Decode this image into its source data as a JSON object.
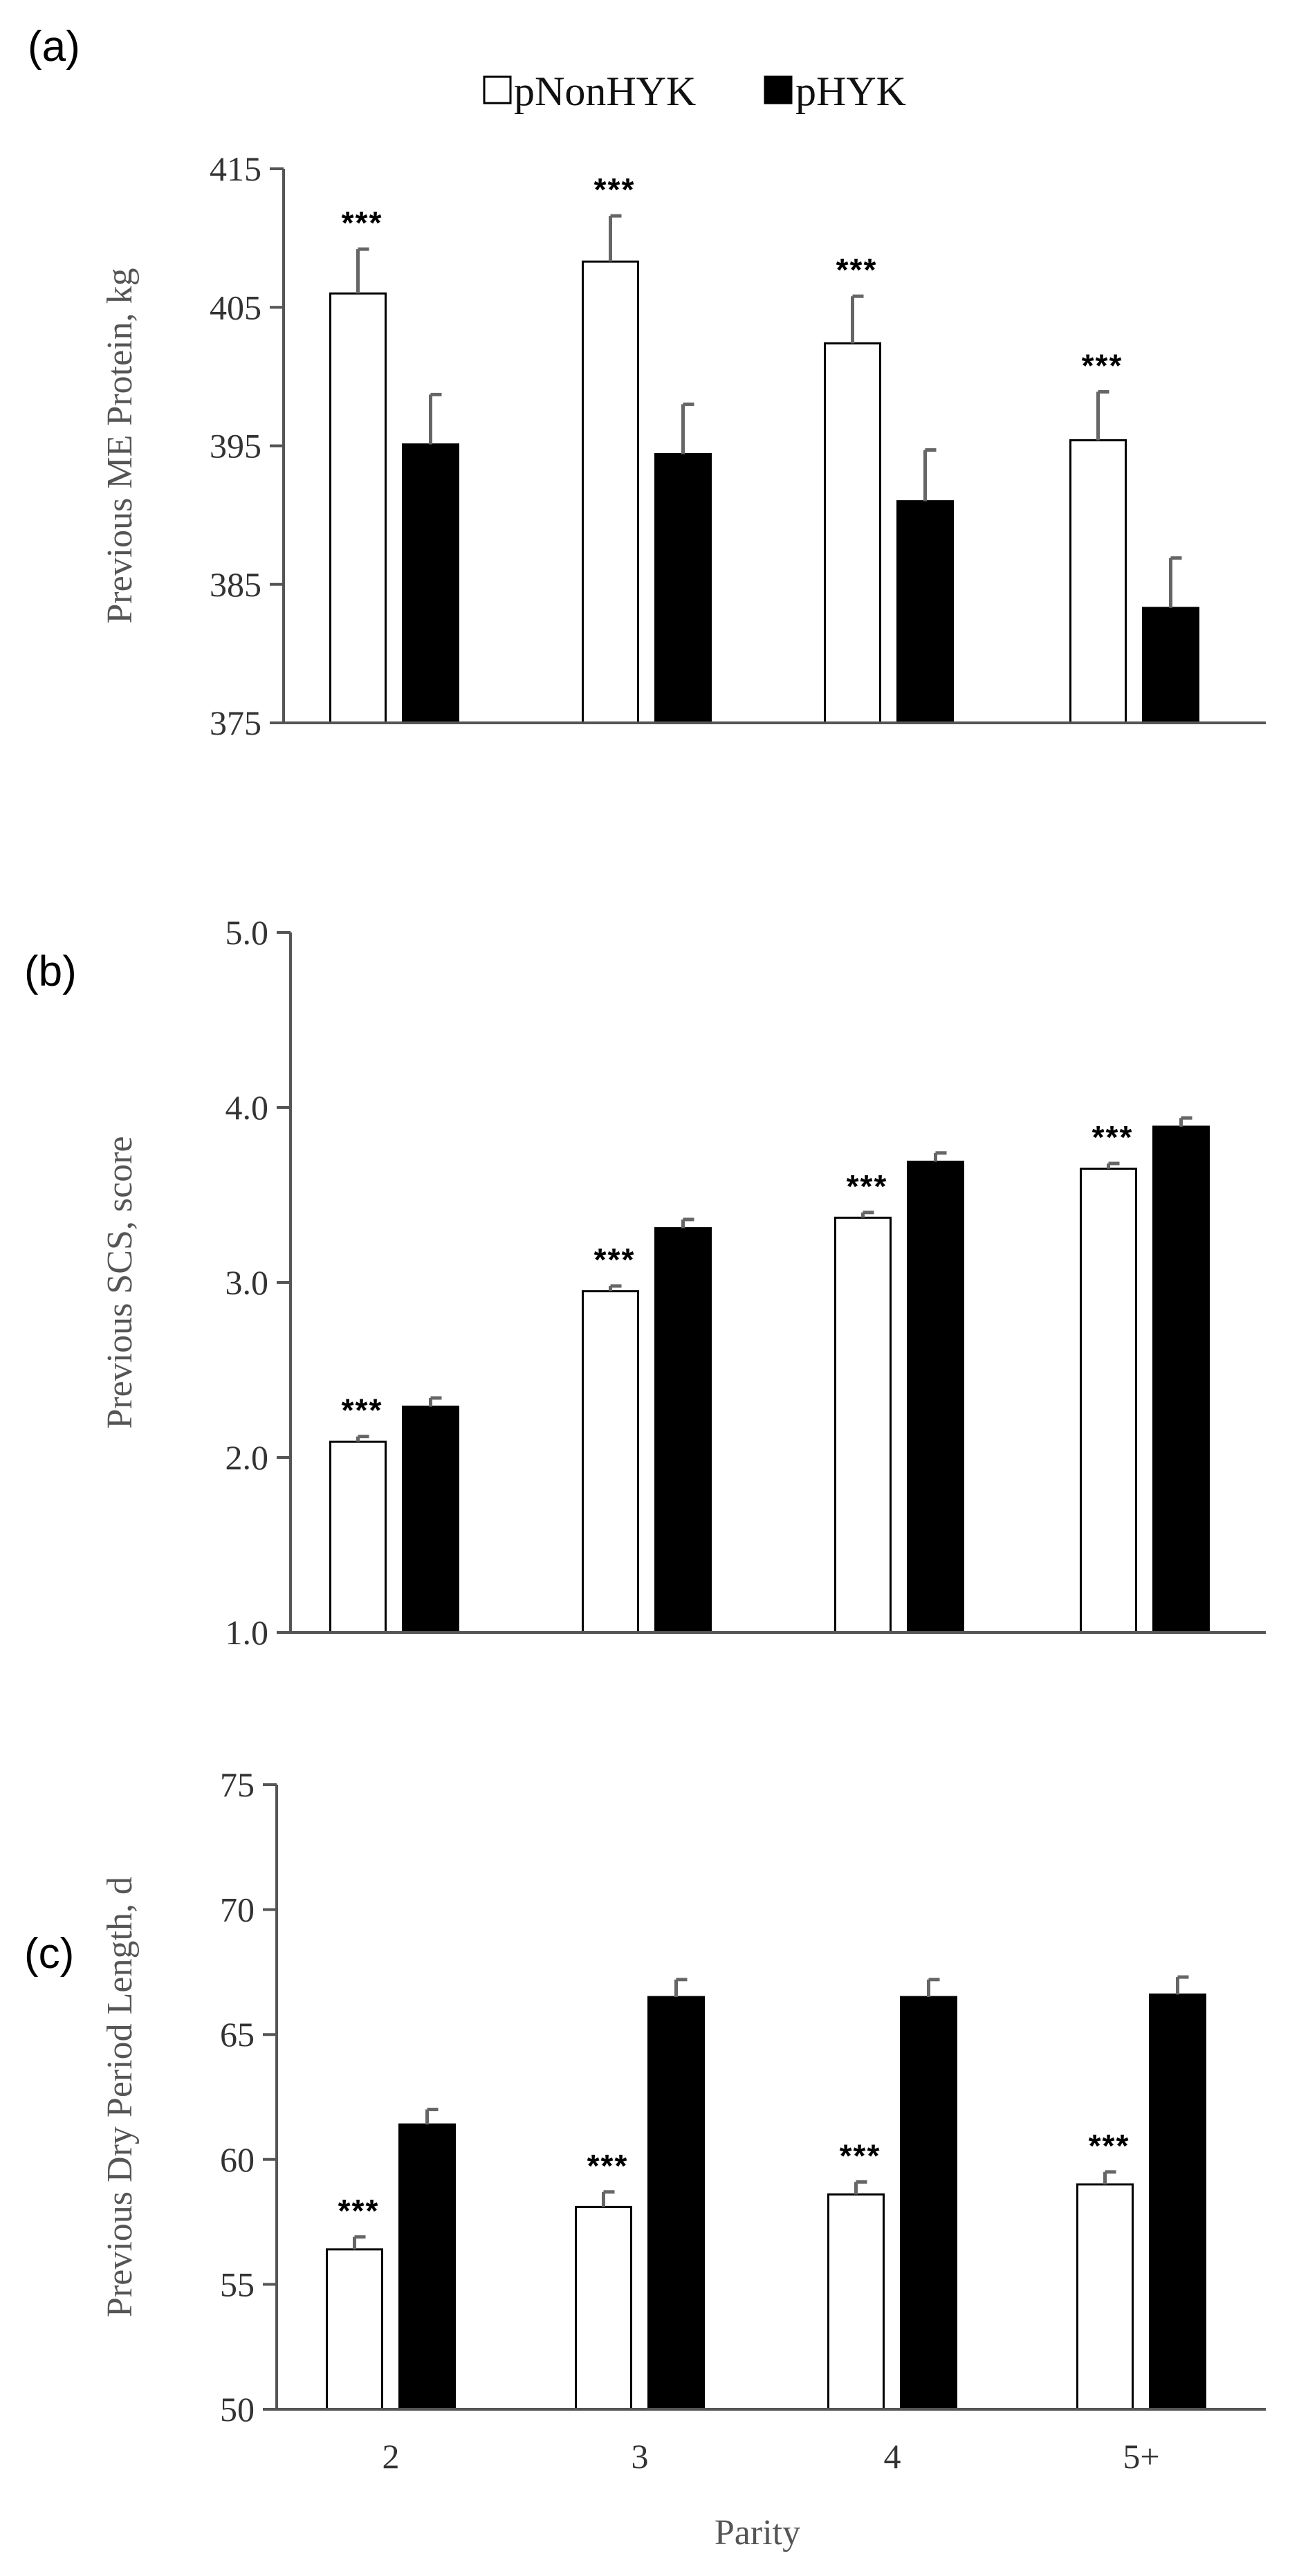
{
  "legend": {
    "series": [
      {
        "name": "pNonHYK",
        "color": "#ffffff"
      },
      {
        "name": "pHYK",
        "color": "#000000"
      }
    ]
  },
  "colors": {
    "axis": "#555555",
    "error_bar": "#666666",
    "bar_outline": "#000000"
  },
  "chart_data": [
    {
      "type": "bar",
      "panel_label": "(a)",
      "categories": [
        "2",
        "3",
        "4",
        "5+"
      ],
      "series": [
        {
          "name": "pNonHYK",
          "values": [
            406.0,
            408.3,
            402.4,
            395.4
          ],
          "errors": [
            3.2,
            3.3,
            3.4,
            3.5
          ]
        },
        {
          "name": "pHYK",
          "values": [
            395.1,
            394.4,
            391.0,
            383.3
          ],
          "errors": [
            3.6,
            3.6,
            3.7,
            3.6
          ]
        }
      ],
      "significance": [
        "***",
        "***",
        "***",
        "***"
      ],
      "ylabel": "Previous ME Protein, kg",
      "xlabel": "",
      "ylim": [
        375,
        415
      ],
      "yticks": [
        "375",
        "385",
        "395",
        "405",
        "415"
      ],
      "show_xtick_labels": false
    },
    {
      "type": "bar",
      "panel_label": "(b)",
      "categories": [
        "2",
        "3",
        "4",
        "5+"
      ],
      "series": [
        {
          "name": "pNonHYK",
          "values": [
            2.09,
            2.95,
            3.37,
            3.65
          ],
          "errors": [
            0.03,
            0.03,
            0.03,
            0.03
          ]
        },
        {
          "name": "pHYK",
          "values": [
            2.29,
            3.31,
            3.69,
            3.89
          ],
          "errors": [
            0.05,
            0.05,
            0.05,
            0.05
          ]
        }
      ],
      "significance": [
        "***",
        "***",
        "***",
        "***"
      ],
      "ylabel": "Previous SCS, score",
      "xlabel": "",
      "ylim": [
        1.0,
        5.0
      ],
      "yticks": [
        "1.0",
        "2.0",
        "3.0",
        "4.0",
        "5.0"
      ],
      "show_xtick_labels": false
    },
    {
      "type": "bar",
      "panel_label": "(c)",
      "categories": [
        "2",
        "3",
        "4",
        "5+"
      ],
      "series": [
        {
          "name": "pNonHYK",
          "values": [
            56.4,
            58.1,
            58.6,
            59.0
          ],
          "errors": [
            0.5,
            0.6,
            0.5,
            0.5
          ]
        },
        {
          "name": "pHYK",
          "values": [
            61.4,
            66.5,
            66.5,
            66.6
          ],
          "errors": [
            0.6,
            0.7,
            0.7,
            0.7
          ]
        }
      ],
      "significance": [
        "***",
        "***",
        "***",
        "***"
      ],
      "ylabel": "Previous Dry Period Length, d",
      "xlabel": "Parity",
      "ylim": [
        50,
        75
      ],
      "yticks": [
        "50",
        "55",
        "60",
        "65",
        "70",
        "75"
      ],
      "show_xtick_labels": true
    }
  ]
}
